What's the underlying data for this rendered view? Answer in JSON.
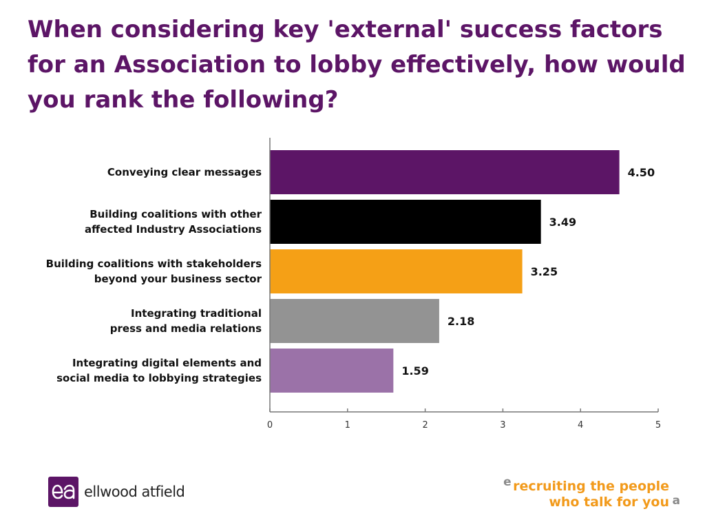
{
  "title": "When considering key 'external' success factors for an Association to lobby effectively, how would you rank the following?",
  "chart_data": {
    "type": "bar",
    "orientation": "horizontal",
    "categories": [
      [
        "Conveying clear messages"
      ],
      [
        "Building coalitions with other",
        "affected Industry Associations"
      ],
      [
        "Building coalitions with stakeholders",
        "beyond your business sector"
      ],
      [
        "Integrating traditional",
        "press and media relations"
      ],
      [
        "Integrating digital elements and",
        "social media to lobbying strategies"
      ]
    ],
    "values": [
      4.5,
      3.49,
      3.25,
      2.18,
      1.59
    ],
    "value_labels": [
      "4.50",
      "3.49",
      "3.25",
      "2.18",
      "1.59"
    ],
    "colors": [
      "#5c1566",
      "#000000",
      "#f5a016",
      "#939393",
      "#9b72a8"
    ],
    "xlim": [
      0,
      5
    ],
    "xticks": [
      0,
      1,
      2,
      3,
      4,
      5
    ],
    "grid": false
  },
  "footer": {
    "logo_text": "ellwood atfield",
    "tagline_line1": "recruiting the people",
    "tagline_line2": "who talk for you"
  }
}
